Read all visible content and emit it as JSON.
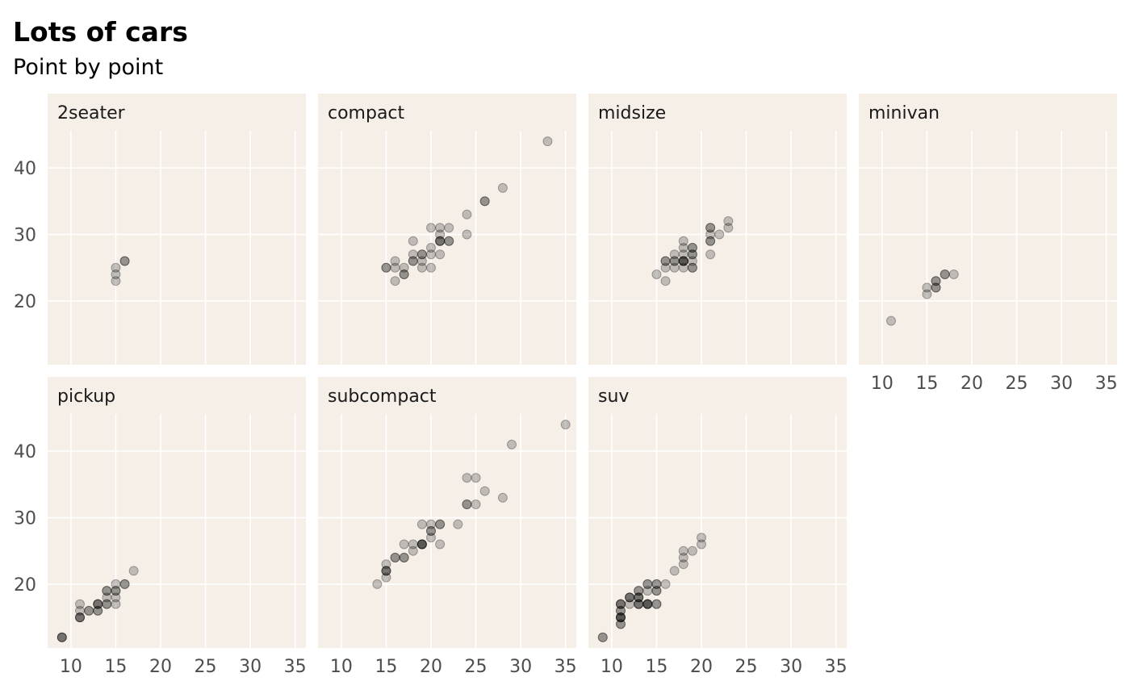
{
  "chart_data": {
    "type": "scatter",
    "title": "Lots of cars",
    "subtitle": "Point by point",
    "facet_layout": "wrap 4 columns",
    "x_ticks": [
      10,
      15,
      20,
      25,
      30,
      35
    ],
    "y_ticks": [
      20,
      30,
      40
    ],
    "xlim": [
      7.4,
      36.2
    ],
    "ylim": [
      10.4,
      45.6
    ],
    "panel_background": "#f5efe8",
    "grid_color": "#ffffff",
    "point_color": "#000000",
    "point_opacity": 0.22,
    "facets": [
      {
        "label": "2seater",
        "points": [
          [
            16,
            26
          ],
          [
            15,
            25
          ],
          [
            15,
            24
          ],
          [
            15,
            23
          ],
          [
            16,
            26
          ]
        ]
      },
      {
        "label": "compact",
        "points": [
          [
            33,
            44
          ],
          [
            28,
            37
          ],
          [
            26,
            35
          ],
          [
            26,
            35
          ],
          [
            24,
            33
          ],
          [
            24,
            30
          ],
          [
            21,
            31
          ],
          [
            22,
            31
          ],
          [
            20,
            31
          ],
          [
            21,
            30
          ],
          [
            21,
            29
          ],
          [
            21,
            29
          ],
          [
            21,
            29
          ],
          [
            22,
            29
          ],
          [
            22,
            29
          ],
          [
            18,
            29
          ],
          [
            20,
            28
          ],
          [
            21,
            27
          ],
          [
            20,
            27
          ],
          [
            19,
            27
          ],
          [
            19,
            27
          ],
          [
            18,
            27
          ],
          [
            18,
            26
          ],
          [
            18,
            26
          ],
          [
            16,
            26
          ],
          [
            19,
            26
          ],
          [
            15,
            25
          ],
          [
            15,
            25
          ],
          [
            16,
            25
          ],
          [
            17,
            25
          ],
          [
            19,
            25
          ],
          [
            20,
            25
          ],
          [
            17,
            24
          ],
          [
            17,
            24
          ],
          [
            16,
            23
          ]
        ]
      },
      {
        "label": "midsize",
        "points": [
          [
            23,
            32
          ],
          [
            23,
            31
          ],
          [
            21,
            31
          ],
          [
            21,
            31
          ],
          [
            22,
            30
          ],
          [
            21,
            30
          ],
          [
            18,
            29
          ],
          [
            21,
            29
          ],
          [
            21,
            29
          ],
          [
            18,
            28
          ],
          [
            19,
            28
          ],
          [
            19,
            28
          ],
          [
            19,
            27
          ],
          [
            19,
            27
          ],
          [
            17,
            27
          ],
          [
            18,
            27
          ],
          [
            21,
            27
          ],
          [
            16,
            26
          ],
          [
            16,
            26
          ],
          [
            17,
            26
          ],
          [
            17,
            26
          ],
          [
            18,
            26
          ],
          [
            18,
            26
          ],
          [
            18,
            26
          ],
          [
            18,
            26
          ],
          [
            19,
            26
          ],
          [
            16,
            25
          ],
          [
            17,
            25
          ],
          [
            19,
            25
          ],
          [
            19,
            25
          ],
          [
            18,
            25
          ],
          [
            15,
            24
          ],
          [
            16,
            23
          ]
        ]
      },
      {
        "label": "minivan",
        "points": [
          [
            18,
            24
          ],
          [
            17,
            24
          ],
          [
            17,
            24
          ],
          [
            16,
            23
          ],
          [
            16,
            23
          ],
          [
            16,
            22
          ],
          [
            16,
            22
          ],
          [
            15,
            22
          ],
          [
            15,
            21
          ],
          [
            11,
            17
          ]
        ]
      },
      {
        "label": "pickup",
        "points": [
          [
            17,
            22
          ],
          [
            16,
            20
          ],
          [
            16,
            20
          ],
          [
            15,
            20
          ],
          [
            15,
            19
          ],
          [
            15,
            19
          ],
          [
            14,
            19
          ],
          [
            14,
            19
          ],
          [
            15,
            18
          ],
          [
            14,
            18
          ],
          [
            15,
            17
          ],
          [
            14,
            17
          ],
          [
            14,
            17
          ],
          [
            13,
            17
          ],
          [
            13,
            17
          ],
          [
            13,
            17
          ],
          [
            11,
            17
          ],
          [
            13,
            16
          ],
          [
            13,
            16
          ],
          [
            12,
            16
          ],
          [
            12,
            16
          ],
          [
            11,
            16
          ],
          [
            11,
            15
          ],
          [
            11,
            15
          ],
          [
            11,
            15
          ],
          [
            9,
            12
          ],
          [
            9,
            12
          ],
          [
            9,
            12
          ]
        ]
      },
      {
        "label": "subcompact",
        "points": [
          [
            35,
            44
          ],
          [
            29,
            41
          ],
          [
            24,
            36
          ],
          [
            25,
            36
          ],
          [
            26,
            34
          ],
          [
            28,
            33
          ],
          [
            24,
            32
          ],
          [
            24,
            32
          ],
          [
            25,
            32
          ],
          [
            19,
            29
          ],
          [
            20,
            29
          ],
          [
            21,
            29
          ],
          [
            21,
            29
          ],
          [
            23,
            29
          ],
          [
            20,
            28
          ],
          [
            20,
            28
          ],
          [
            20,
            27
          ],
          [
            18,
            26
          ],
          [
            17,
            26
          ],
          [
            19,
            26
          ],
          [
            19,
            26
          ],
          [
            19,
            26
          ],
          [
            19,
            26
          ],
          [
            21,
            26
          ],
          [
            18,
            25
          ],
          [
            16,
            24
          ],
          [
            16,
            24
          ],
          [
            17,
            24
          ],
          [
            17,
            24
          ],
          [
            15,
            23
          ],
          [
            15,
            22
          ],
          [
            15,
            22
          ],
          [
            15,
            22
          ],
          [
            15,
            21
          ],
          [
            14,
            20
          ]
        ]
      },
      {
        "label": "suv",
        "points": [
          [
            20,
            27
          ],
          [
            20,
            26
          ],
          [
            18,
            25
          ],
          [
            19,
            25
          ],
          [
            18,
            24
          ],
          [
            18,
            23
          ],
          [
            17,
            22
          ],
          [
            14,
            20
          ],
          [
            14,
            20
          ],
          [
            15,
            20
          ],
          [
            16,
            20
          ],
          [
            15,
            20
          ],
          [
            13,
            19
          ],
          [
            13,
            19
          ],
          [
            14,
            19
          ],
          [
            15,
            19
          ],
          [
            15,
            19
          ],
          [
            11,
            17
          ],
          [
            12,
            18
          ],
          [
            12,
            18
          ],
          [
            12,
            18
          ],
          [
            13,
            18
          ],
          [
            13,
            18
          ],
          [
            13,
            18
          ],
          [
            11,
            17
          ],
          [
            11,
            17
          ],
          [
            12,
            17
          ],
          [
            13,
            17
          ],
          [
            13,
            17
          ],
          [
            13,
            17
          ],
          [
            14,
            17
          ],
          [
            14,
            17
          ],
          [
            14,
            17
          ],
          [
            14,
            17
          ],
          [
            15,
            17
          ],
          [
            15,
            17
          ],
          [
            11,
            16
          ],
          [
            11,
            16
          ],
          [
            11,
            15
          ],
          [
            11,
            15
          ],
          [
            11,
            15
          ],
          [
            11,
            15
          ],
          [
            11,
            14
          ],
          [
            11,
            14
          ],
          [
            9,
            12
          ],
          [
            9,
            12
          ]
        ]
      }
    ]
  }
}
